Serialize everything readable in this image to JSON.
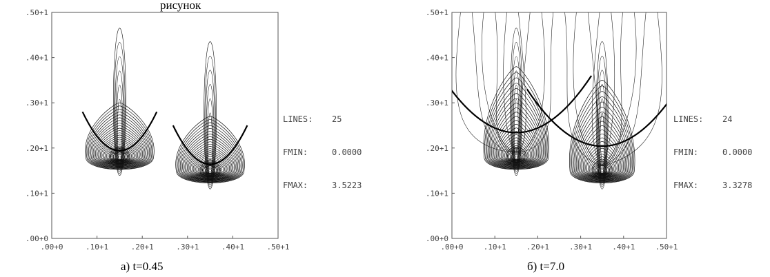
{
  "header_fragment": "рисунок",
  "panels": [
    {
      "caption": "а)  t=0.45",
      "stats": [
        {
          "label": "LINES:",
          "value": "25"
        },
        {
          "label": "FMIN:",
          "value": "0.0000"
        },
        {
          "label": "FMAX:",
          "value": "3.5223"
        }
      ]
    },
    {
      "caption": "б) t=7.0",
      "stats": [
        {
          "label": "LINES:",
          "value": "24"
        },
        {
          "label": "FMIN:",
          "value": "0.0000"
        },
        {
          "label": "FMAX:",
          "value": "3.3278"
        }
      ]
    }
  ],
  "chart_data": [
    {
      "type": "contour",
      "xlim": [
        0,
        5
      ],
      "ylim": [
        0,
        5
      ],
      "x_ticks": [
        ".00+0",
        ".10+1",
        ".20+1",
        ".30+1",
        ".40+1",
        ".50+1"
      ],
      "y_ticks": [
        ".00+0",
        ".10+1",
        ".20+1",
        ".30+1",
        ".40+1",
        ".50+1"
      ],
      "lines": 25,
      "fmin": 0.0,
      "fmax": 3.5223,
      "sources": [
        {
          "x": 1.5,
          "y": 1.8
        },
        {
          "x": 3.5,
          "y": 1.5
        }
      ]
    },
    {
      "type": "contour",
      "xlim": [
        0,
        5
      ],
      "ylim": [
        0,
        5
      ],
      "x_ticks": [
        ".00+0",
        ".10+1",
        ".20+1",
        ".30+1",
        ".40+1",
        ".50+1"
      ],
      "y_ticks": [
        ".00+0",
        ".10+1",
        ".20+1",
        ".30+1",
        ".40+1",
        ".50+1"
      ],
      "lines": 24,
      "fmin": 0.0,
      "fmax": 3.3278,
      "sources": [
        {
          "x": 1.5,
          "y": 1.8
        },
        {
          "x": 3.5,
          "y": 1.5
        }
      ]
    }
  ]
}
